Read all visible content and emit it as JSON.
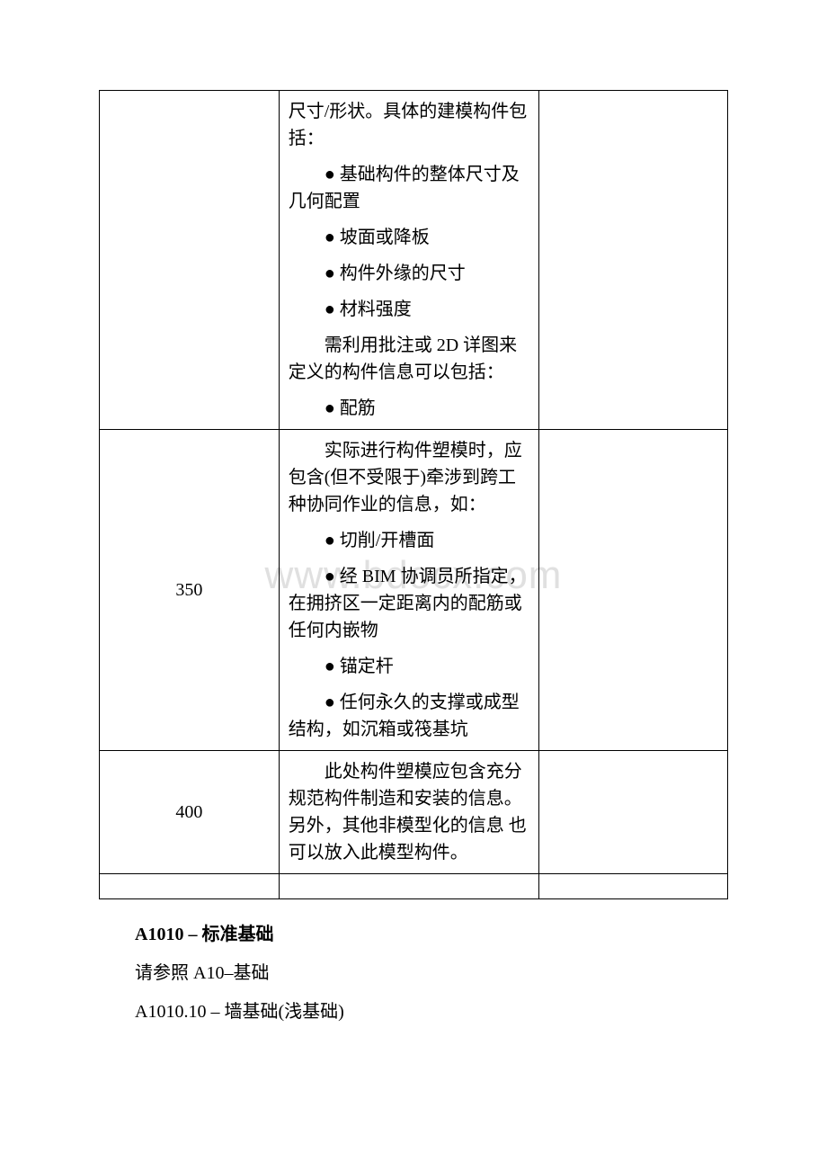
{
  "watermark": "www.bdocx.com",
  "table": {
    "rows": [
      {
        "col1": "",
        "col2_paragraphs": [
          "尺寸/形状。具体的建模构件包括：",
          "● 基础构件的整体尺寸及几何配置",
          "● 坡面或降板",
          "● 构件外缘的尺寸",
          "● 材料强度",
          "需利用批注或 2D 详图来定义的构件信息可以包括：",
          "● 配筋"
        ],
        "col3": ""
      },
      {
        "col1": "350",
        "col2_paragraphs": [
          "实际进行构件塑模时，应包含(但不受限于)牵涉到跨工种协同作业的信息，如：",
          "● 切削/开槽面",
          "● 经 BIM 协调员所指定，在拥挤区一定距离内的配筋或任何内嵌物",
          "● 锚定杆",
          "● 任何永久的支撑或成型结构，如沉箱或筏基坑"
        ],
        "col3": ""
      },
      {
        "col1": "400",
        "col2_paragraphs": [
          "此处构件塑模应包含充分规范构件制造和安装的信息。另外，其他非模型化的信息 也可以放入此模型构件。"
        ],
        "col3": ""
      },
      {
        "col1": "",
        "col2_paragraphs": [],
        "col3": "",
        "narrow": true
      }
    ]
  },
  "footer": {
    "heading": "A1010 – 标准基础",
    "line1": "请参照 A10–基础",
    "line2": "A1010.10 – 墙基础(浅基础)"
  }
}
